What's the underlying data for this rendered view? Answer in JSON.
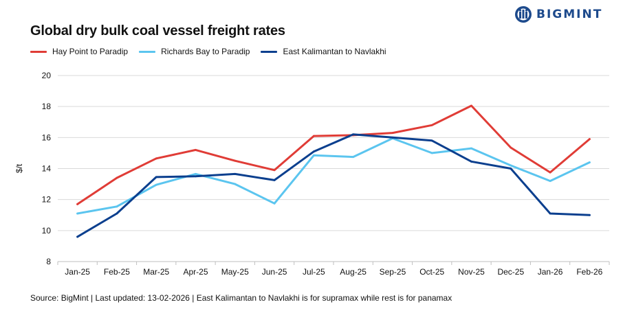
{
  "header": {
    "title": "Global dry bulk coal vessel freight rates",
    "brand": "BIGMINT"
  },
  "footer": {
    "source": "Source: BigMint | Last updated: 13-02-2026 | East Kalimantan to Navlakhi is for supramax while rest is for panamax"
  },
  "colors": {
    "hay_point": "#e03c36",
    "richards_bay": "#5bc5ef",
    "east_kalimantan": "#0b3f8e",
    "grid": "#d9d9d9",
    "axis": "#bfbfbf",
    "brand": "#1d4a8c"
  },
  "chart_data": {
    "type": "line",
    "title": "Global dry bulk coal vessel freight rates",
    "xlabel": "",
    "ylabel": "$/t",
    "ylim": [
      8,
      20
    ],
    "yticks": [
      8,
      10,
      12,
      14,
      16,
      18,
      20
    ],
    "grid": true,
    "legend_position": "top-left",
    "categories": [
      "Jan-25",
      "Feb-25",
      "Mar-25",
      "Apr-25",
      "May-25",
      "Jun-25",
      "Jul-25",
      "Aug-25",
      "Sep-25",
      "Oct-25",
      "Nov-25",
      "Dec-25",
      "Jan-26",
      "Feb-26"
    ],
    "series": [
      {
        "name": "Hay Point to Paradip",
        "color": "#e03c36",
        "values": [
          11.7,
          13.4,
          14.65,
          15.2,
          14.5,
          13.9,
          16.1,
          16.15,
          16.3,
          16.8,
          18.05,
          15.35,
          13.75,
          15.9
        ]
      },
      {
        "name": "Richards Bay to Paradip",
        "color": "#5bc5ef",
        "values": [
          11.1,
          11.55,
          12.95,
          13.65,
          13.0,
          11.75,
          14.85,
          14.75,
          15.95,
          15.0,
          15.3,
          14.2,
          13.2,
          14.4
        ]
      },
      {
        "name": "East Kalimantan to Navlakhi",
        "color": "#0b3f8e",
        "values": [
          9.6,
          11.1,
          13.45,
          13.5,
          13.65,
          13.25,
          15.1,
          16.2,
          16.0,
          15.8,
          14.45,
          14.0,
          11.1,
          11.0
        ]
      }
    ]
  }
}
